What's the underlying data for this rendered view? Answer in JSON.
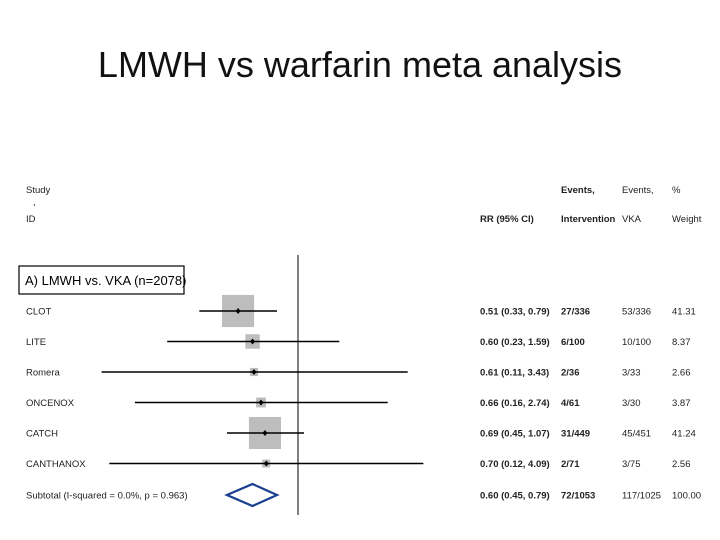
{
  "slide": {
    "title": "LMWH vs warfarin meta analysis"
  },
  "chart_data": {
    "type": "forest",
    "headers": {
      "study_line1": "Study",
      "study_line2": "ID",
      "rr": "RR (95% CI)",
      "events_int_1": "Events,",
      "events_int_2": "Intervention",
      "events_vka_1": "Events,",
      "events_vka_2": "VKA",
      "pct_1": "%",
      "pct_2": "Weight"
    },
    "group_label": "A) LMWH vs. VKA (n=2078)",
    "reference_line": 1,
    "x_range": [
      0.07,
      6.5
    ],
    "x_scale": "log",
    "studies": [
      {
        "name": "CLOT",
        "rr": 0.51,
        "lo": 0.33,
        "hi": 0.79,
        "rr_text": "0.51 (0.33, 0.79)",
        "int_events": "27/336",
        "vka_events": "53/336",
        "weight": 41.31,
        "weight_text": "41.31"
      },
      {
        "name": "LITE",
        "rr": 0.6,
        "lo": 0.23,
        "hi": 1.59,
        "rr_text": "0.60 (0.23, 1.59)",
        "int_events": "6/100",
        "vka_events": "10/100",
        "weight": 8.37,
        "weight_text": "8.37"
      },
      {
        "name": "Romera",
        "rr": 0.61,
        "lo": 0.11,
        "hi": 3.43,
        "rr_text": "0.61 (0.11, 3.43)",
        "int_events": "2/36",
        "vka_events": "3/33",
        "weight": 2.66,
        "weight_text": "2.66"
      },
      {
        "name": "ONCENOX",
        "rr": 0.66,
        "lo": 0.16,
        "hi": 2.74,
        "rr_text": "0.66 (0.16, 2.74)",
        "int_events": "4/61",
        "vka_events": "3/30",
        "weight": 3.87,
        "weight_text": "3.87"
      },
      {
        "name": "CATCH",
        "rr": 0.69,
        "lo": 0.45,
        "hi": 1.07,
        "rr_text": "0.69 (0.45, 1.07)",
        "int_events": "31/449",
        "vka_events": "45/451",
        "weight": 41.24,
        "weight_text": "41.24"
      },
      {
        "name": "CANTHANOX",
        "rr": 0.7,
        "lo": 0.12,
        "hi": 4.09,
        "rr_text": "0.70 (0.12, 4.09)",
        "int_events": "2/71",
        "vka_events": "3/75",
        "weight": 2.56,
        "weight_text": "2.56"
      }
    ],
    "subtotal": {
      "label": "Subtotal  (I-squared = 0.0%, p = 0.963)",
      "rr": 0.6,
      "lo": 0.45,
      "hi": 0.79,
      "rr_text": "0.60 (0.45, 0.79)",
      "int_events": "72/1053",
      "vka_events": "117/1025",
      "weight_text": "100.00"
    },
    "colors": {
      "box": "#bdbdbd",
      "line": "#000000"
    }
  }
}
